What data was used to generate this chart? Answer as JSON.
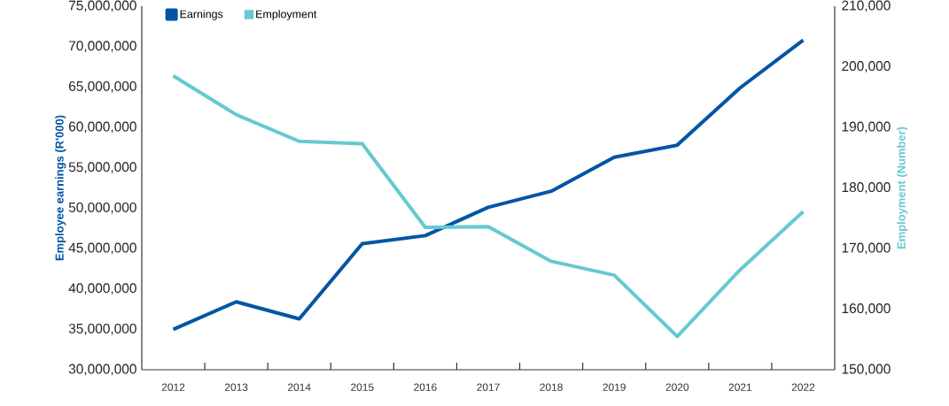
{
  "chart_data": {
    "type": "line",
    "categories": [
      "2012",
      "2013",
      "2014",
      "2015",
      "2016",
      "2017",
      "2018",
      "2019",
      "2020",
      "2021",
      "2022"
    ],
    "series": [
      {
        "name": "Earnings",
        "color": "#0055a5",
        "values": [
          35000000,
          38400000,
          36300000,
          45600000,
          46600000,
          50100000,
          52100000,
          56300000,
          57800000,
          64900000,
          70800000
        ]
      },
      {
        "name": "Employment",
        "color": "#66c9d1",
        "axis": "y2",
        "values": [
          198500,
          192100,
          187700,
          187300,
          173500,
          173600,
          167900,
          165600,
          155500,
          166500,
          176100
        ]
      }
    ],
    "ylabel": "Employee earnings (R'000)",
    "y2label": "Employment (Number)",
    "ylim": [
      30000000,
      75000000
    ],
    "yticks": [
      {
        "value": 30000000,
        "label": "30,000,000"
      },
      {
        "value": 35000000,
        "label": "35,000,000"
      },
      {
        "value": 40000000,
        "label": "40,000,000"
      },
      {
        "value": 45000000,
        "label": "45,000,000"
      },
      {
        "value": 50000000,
        "label": "50,000,000"
      },
      {
        "value": 55000000,
        "label": "55,000,000"
      },
      {
        "value": 60000000,
        "label": "60,000,000"
      },
      {
        "value": 65000000,
        "label": "65,000,000"
      },
      {
        "value": 70000000,
        "label": "70,000,000"
      },
      {
        "value": 75000000,
        "label": "75,000,000"
      }
    ],
    "y2lim": [
      150000,
      210000
    ],
    "y2ticks": [
      {
        "value": 150000,
        "label": "150,000"
      },
      {
        "value": 160000,
        "label": "160,000"
      },
      {
        "value": 170000,
        "label": "170,000"
      },
      {
        "value": 180000,
        "label": "180,000"
      },
      {
        "value": 190000,
        "label": "190,000"
      },
      {
        "value": 200000,
        "label": "200,000"
      },
      {
        "value": 210000,
        "label": "210,000"
      }
    ],
    "legend": "top left",
    "grid": false,
    "line_style": "solid"
  }
}
